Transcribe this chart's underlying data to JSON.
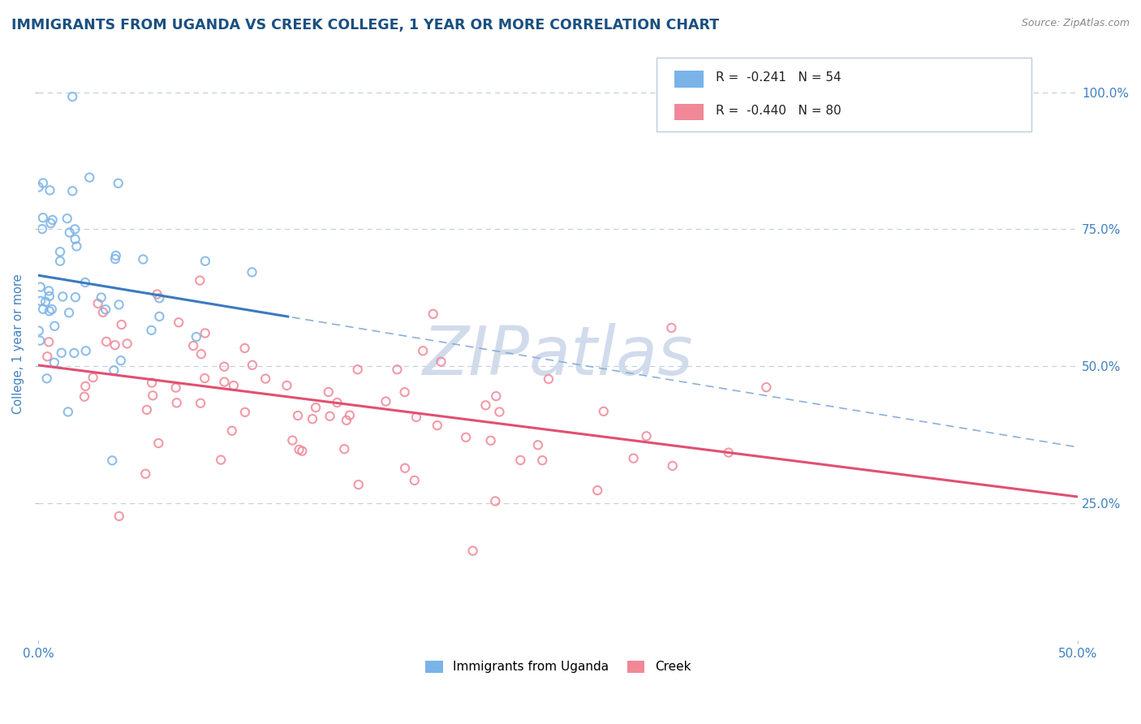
{
  "title": "IMMIGRANTS FROM UGANDA VS CREEK COLLEGE, 1 YEAR OR MORE CORRELATION CHART",
  "source_text": "Source: ZipAtlas.com",
  "ylabel": "College, 1 year or more",
  "xlim": [
    0.0,
    0.5
  ],
  "ylim": [
    0.0,
    1.08
  ],
  "uganda_color": "#7ab3e8",
  "creek_color": "#f08898",
  "uganda_line_color": "#3a7abf",
  "creek_line_color": "#e05070",
  "dashed_line_color": "#8ab0d8",
  "watermark_text": "ZIPatlas",
  "watermark_color": "#ccd8ea",
  "background_color": "#ffffff",
  "grid_color": "#c8d0dc",
  "title_color": "#1a5080",
  "axis_label_color": "#4080c0",
  "tick_color": "#4080c0",
  "uganda_R": -0.241,
  "uganda_N": 54,
  "creek_R": -0.44,
  "creek_N": 80,
  "figsize": [
    14.06,
    8.92
  ],
  "dpi": 100
}
